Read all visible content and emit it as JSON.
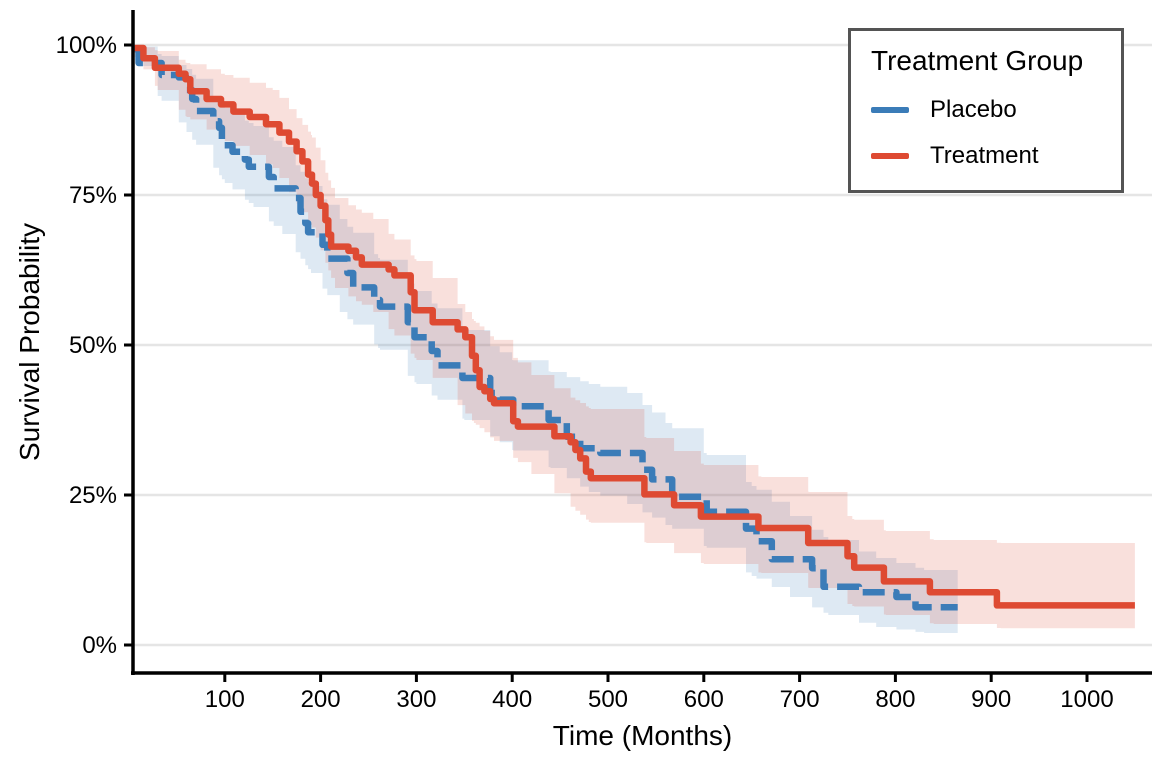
{
  "figure": {
    "xlabel": "Time (Months)",
    "ylabel": "Survival Probability"
  },
  "legend": {
    "title": "Treatment Group",
    "entries": [
      {
        "label": "Placebo"
      },
      {
        "label": "Treatment"
      }
    ]
  },
  "chart_data": {
    "type": "line",
    "subtype": "kaplan-meier-step-with-confidence-bands",
    "title": "",
    "xlabel": "Time (Months)",
    "ylabel": "Survival Probability",
    "xlim": [
      0,
      1060
    ],
    "ylim": [
      0,
      100
    ],
    "grid": "horizontal-only",
    "legend_position": "top-right-inside",
    "x_ticks": [
      {
        "value": 100,
        "label": "100"
      },
      {
        "value": 200,
        "label": "200"
      },
      {
        "value": 300,
        "label": "300"
      },
      {
        "value": 400,
        "label": "400"
      },
      {
        "value": 500,
        "label": "500"
      },
      {
        "value": 600,
        "label": "600"
      },
      {
        "value": 700,
        "label": "700"
      },
      {
        "value": 800,
        "label": "800"
      },
      {
        "value": 900,
        "label": "900"
      },
      {
        "value": 1000,
        "label": "1000"
      }
    ],
    "y_ticks": [
      {
        "value": 0,
        "label": "0%"
      },
      {
        "value": 25,
        "label": "25%"
      },
      {
        "value": 50,
        "label": "50%"
      },
      {
        "value": 75,
        "label": "75%"
      },
      {
        "value": 100,
        "label": "100%"
      }
    ],
    "style": {
      "grid_color": "#E5E5E5",
      "axis_color": "#000000",
      "text_color": "#000000",
      "background": "#FFFFFF",
      "legend_border": "#545454",
      "band_opacity": 0.17
    },
    "series": [
      {
        "name": "Placebo",
        "color": "#3B7CB8",
        "line_style": "dashed",
        "end_time": 865,
        "steps": [
          [
            6,
            99.3
          ],
          [
            10,
            97.0
          ],
          [
            34,
            95.0
          ],
          [
            52,
            94.6
          ],
          [
            60,
            92.5
          ],
          [
            66,
            91.0
          ],
          [
            70,
            89.0
          ],
          [
            88,
            87.3
          ],
          [
            94,
            86.2
          ],
          [
            97,
            83.3
          ],
          [
            108,
            82.2
          ],
          [
            121,
            80.9
          ],
          [
            125,
            79.7
          ],
          [
            146,
            78.0
          ],
          [
            151,
            76.1
          ],
          [
            174,
            74.5
          ],
          [
            179,
            72.2
          ],
          [
            184,
            70.3
          ],
          [
            187,
            68.8
          ],
          [
            202,
            66.7
          ],
          [
            207,
            64.4
          ],
          [
            228,
            62.0
          ],
          [
            234,
            59.6
          ],
          [
            256,
            57.5
          ],
          [
            262,
            56.4
          ],
          [
            291,
            53.8
          ],
          [
            298,
            51.3
          ],
          [
            316,
            49.0
          ],
          [
            322,
            46.6
          ],
          [
            348,
            44.5
          ],
          [
            377,
            42.0
          ],
          [
            387,
            40.9
          ],
          [
            401,
            39.8
          ],
          [
            438,
            37.5
          ],
          [
            457,
            34.7
          ],
          [
            471,
            32.8
          ],
          [
            492,
            32.0
          ],
          [
            536,
            29.2
          ],
          [
            546,
            27.6
          ],
          [
            567,
            24.7
          ],
          [
            603,
            22.2
          ],
          [
            644,
            19.4
          ],
          [
            655,
            17.3
          ],
          [
            671,
            14.3
          ],
          [
            713,
            12.8
          ],
          [
            725,
            9.7
          ],
          [
            762,
            8.8
          ],
          [
            801,
            8.0
          ],
          [
            821,
            6.3
          ]
        ],
        "band": [
          [
            6,
            97.5,
            100
          ],
          [
            30,
            91.5,
            98.5
          ],
          [
            60,
            85.5,
            96
          ],
          [
            100,
            77,
            89.5
          ],
          [
            130,
            73,
            86.5
          ],
          [
            160,
            68.5,
            83
          ],
          [
            190,
            62,
            76.5
          ],
          [
            220,
            55.5,
            71
          ],
          [
            260,
            49.5,
            64.5
          ],
          [
            300,
            43.5,
            59
          ],
          [
            350,
            37.5,
            52.5
          ],
          [
            400,
            32.5,
            47.5
          ],
          [
            440,
            29.5,
            45.5
          ],
          [
            480,
            25.5,
            43.5
          ],
          [
            520,
            23.5,
            42
          ],
          [
            560,
            20,
            37
          ],
          [
            600,
            16.5,
            32
          ],
          [
            650,
            11.5,
            26.5
          ],
          [
            690,
            8,
            21.5
          ],
          [
            730,
            5,
            17.5
          ],
          [
            780,
            3,
            14.5
          ],
          [
            830,
            2,
            12.5
          ],
          [
            865,
            1.5,
            12
          ]
        ]
      },
      {
        "name": "Treatment",
        "color": "#DE4A32",
        "line_style": "solid",
        "end_time": 1050,
        "steps": [
          [
            6,
            99.5
          ],
          [
            15,
            97.8
          ],
          [
            27,
            96.2
          ],
          [
            52,
            95.2
          ],
          [
            59,
            94.3
          ],
          [
            64,
            92.3
          ],
          [
            81,
            91.0
          ],
          [
            96,
            90.1
          ],
          [
            109,
            88.9
          ],
          [
            126,
            88.0
          ],
          [
            143,
            86.8
          ],
          [
            157,
            85.4
          ],
          [
            167,
            83.9
          ],
          [
            175,
            82.3
          ],
          [
            181,
            80.6
          ],
          [
            187,
            78.4
          ],
          [
            191,
            76.9
          ],
          [
            195,
            75.0
          ],
          [
            200,
            73.2
          ],
          [
            205,
            70.8
          ],
          [
            208,
            68.4
          ],
          [
            211,
            66.4
          ],
          [
            229,
            65.7
          ],
          [
            237,
            64.6
          ],
          [
            243,
            63.4
          ],
          [
            271,
            62.6
          ],
          [
            277,
            61.6
          ],
          [
            294,
            58.8
          ],
          [
            298,
            55.8
          ],
          [
            317,
            53.8
          ],
          [
            343,
            52.6
          ],
          [
            351,
            51.3
          ],
          [
            358,
            48.2
          ],
          [
            362,
            45.8
          ],
          [
            366,
            43.0
          ],
          [
            371,
            42.3
          ],
          [
            377,
            41.0
          ],
          [
            381,
            40.3
          ],
          [
            401,
            37.3
          ],
          [
            406,
            36.4
          ],
          [
            444,
            34.8
          ],
          [
            461,
            33.8
          ],
          [
            466,
            32.5
          ],
          [
            471,
            31.1
          ],
          [
            477,
            28.9
          ],
          [
            482,
            27.8
          ],
          [
            538,
            25.1
          ],
          [
            569,
            23.3
          ],
          [
            597,
            21.4
          ],
          [
            657,
            19.5
          ],
          [
            709,
            17.0
          ],
          [
            750,
            14.8
          ],
          [
            757,
            12.9
          ],
          [
            788,
            10.6
          ],
          [
            836,
            8.8
          ],
          [
            906,
            6.6
          ]
        ],
        "band": [
          [
            6,
            98,
            100
          ],
          [
            30,
            92.5,
            99
          ],
          [
            60,
            88,
            97
          ],
          [
            100,
            84,
            95
          ],
          [
            150,
            79.5,
            92.5
          ],
          [
            190,
            70,
            85
          ],
          [
            215,
            59.5,
            74.5
          ],
          [
            255,
            55.5,
            71
          ],
          [
            300,
            47.5,
            64
          ],
          [
            360,
            37,
            54
          ],
          [
            420,
            28.5,
            45
          ],
          [
            480,
            20.5,
            39.5
          ],
          [
            540,
            17,
            34.5
          ],
          [
            600,
            13.5,
            30
          ],
          [
            660,
            12,
            28
          ],
          [
            710,
            9.5,
            25.5
          ],
          [
            755,
            6.5,
            21
          ],
          [
            790,
            5,
            19
          ],
          [
            840,
            3.5,
            17.5
          ],
          [
            910,
            2.8,
            17
          ],
          [
            1050,
            2.5,
            18.3
          ]
        ]
      }
    ]
  }
}
